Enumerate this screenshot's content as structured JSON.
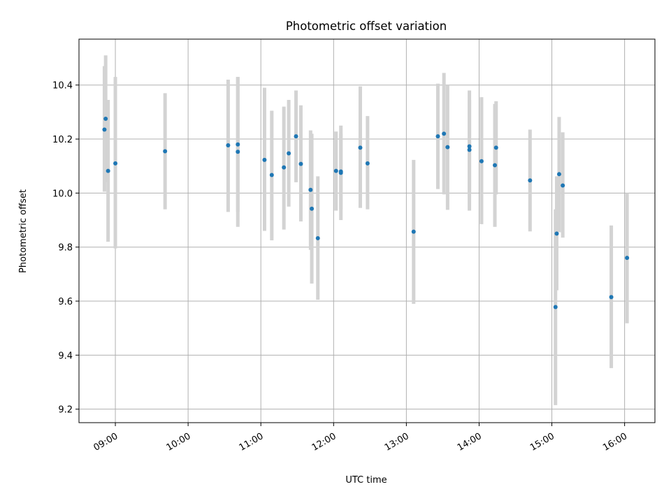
{
  "chart_data": {
    "type": "scatter",
    "title": "Photometric offset variation",
    "xlabel": "UTC time",
    "ylabel": "Photometric offset",
    "x_axis_kind": "time",
    "xlim": [
      "08:30",
      "16:25"
    ],
    "ylim": [
      9.15,
      10.57
    ],
    "x_ticks": [
      "09:00",
      "10:00",
      "11:00",
      "12:00",
      "13:00",
      "14:00",
      "15:00",
      "16:00"
    ],
    "y_ticks": [
      9.2,
      9.4,
      9.6,
      9.8,
      10.0,
      10.2,
      10.4
    ],
    "grid": true,
    "marker_color": "#1f77b4",
    "errorbar_color": "#d3d3d3",
    "series": [
      {
        "points": [
          {
            "t": "08:51",
            "y": 10.235,
            "lo": 10.005,
            "hi": 10.47
          },
          {
            "t": "08:52",
            "y": 10.275,
            "lo": 10.04,
            "hi": 10.51
          },
          {
            "t": "08:54",
            "y": 10.082,
            "lo": 9.82,
            "hi": 10.345
          },
          {
            "t": "09:00",
            "y": 10.11,
            "lo": 9.795,
            "hi": 10.43
          },
          {
            "t": "09:41",
            "y": 10.155,
            "lo": 9.94,
            "hi": 10.37
          },
          {
            "t": "10:33",
            "y": 10.177,
            "lo": 9.93,
            "hi": 10.42
          },
          {
            "t": "10:41",
            "y": 10.153,
            "lo": 9.875,
            "hi": 10.43
          },
          {
            "t": "10:41",
            "y": 10.18,
            "lo": 9.93,
            "hi": 10.43
          },
          {
            "t": "11:03",
            "y": 10.123,
            "lo": 9.86,
            "hi": 10.39
          },
          {
            "t": "11:09",
            "y": 10.067,
            "lo": 9.825,
            "hi": 10.305
          },
          {
            "t": "11:19",
            "y": 10.095,
            "lo": 9.865,
            "hi": 10.32
          },
          {
            "t": "11:23",
            "y": 10.147,
            "lo": 9.95,
            "hi": 10.345
          },
          {
            "t": "11:29",
            "y": 10.21,
            "lo": 10.04,
            "hi": 10.38
          },
          {
            "t": "11:33",
            "y": 10.108,
            "lo": 9.895,
            "hi": 10.325
          },
          {
            "t": "11:41",
            "y": 10.012,
            "lo": 9.79,
            "hi": 10.232
          },
          {
            "t": "11:42",
            "y": 9.942,
            "lo": 9.665,
            "hi": 10.22
          },
          {
            "t": "11:47",
            "y": 9.833,
            "lo": 9.605,
            "hi": 10.062
          },
          {
            "t": "12:02",
            "y": 10.082,
            "lo": 9.935,
            "hi": 10.228
          },
          {
            "t": "12:06",
            "y": 10.075,
            "lo": 9.9,
            "hi": 10.25
          },
          {
            "t": "12:06",
            "y": 10.08,
            "lo": 9.94,
            "hi": 10.22
          },
          {
            "t": "12:22",
            "y": 10.168,
            "lo": 9.945,
            "hi": 10.395
          },
          {
            "t": "12:28",
            "y": 10.11,
            "lo": 9.94,
            "hi": 10.285
          },
          {
            "t": "13:06",
            "y": 9.857,
            "lo": 9.59,
            "hi": 10.123
          },
          {
            "t": "13:26",
            "y": 10.21,
            "lo": 10.015,
            "hi": 10.405
          },
          {
            "t": "13:31",
            "y": 10.22,
            "lo": 9.995,
            "hi": 10.445
          },
          {
            "t": "13:34",
            "y": 10.17,
            "lo": 9.938,
            "hi": 10.4
          },
          {
            "t": "13:52",
            "y": 10.16,
            "lo": 9.935,
            "hi": 10.38
          },
          {
            "t": "13:52",
            "y": 10.173,
            "lo": 10.0,
            "hi": 10.345
          },
          {
            "t": "14:02",
            "y": 10.118,
            "lo": 9.885,
            "hi": 10.355
          },
          {
            "t": "14:13",
            "y": 10.103,
            "lo": 9.875,
            "hi": 10.33
          },
          {
            "t": "14:14",
            "y": 10.168,
            "lo": 9.995,
            "hi": 10.34
          },
          {
            "t": "14:42",
            "y": 10.047,
            "lo": 9.858,
            "hi": 10.235
          },
          {
            "t": "15:03",
            "y": 9.578,
            "lo": 9.215,
            "hi": 9.94
          },
          {
            "t": "15:04",
            "y": 9.85,
            "lo": 9.64,
            "hi": 10.062
          },
          {
            "t": "15:06",
            "y": 10.07,
            "lo": 9.855,
            "hi": 10.282
          },
          {
            "t": "15:09",
            "y": 10.028,
            "lo": 9.835,
            "hi": 10.225
          },
          {
            "t": "15:49",
            "y": 9.615,
            "lo": 9.352,
            "hi": 9.88
          },
          {
            "t": "16:02",
            "y": 9.76,
            "lo": 9.518,
            "hi": 10.0
          }
        ]
      }
    ]
  }
}
